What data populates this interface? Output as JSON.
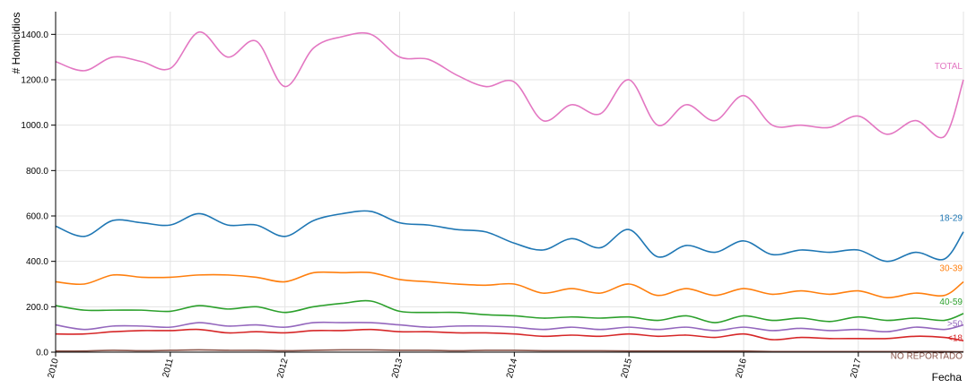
{
  "chart_data": {
    "type": "line",
    "title": "",
    "xlabel": "Fecha",
    "ylabel": "# Homicidios",
    "ylim": [
      0,
      1500
    ],
    "xlim": [
      "2010-01",
      "2017-12"
    ],
    "y_ticks": [
      "0.0",
      "200.0",
      "400.0",
      "600.0",
      "800.0",
      "1000.0",
      "1200.0",
      "1400.0"
    ],
    "x_ticks": [
      "2010",
      "2011",
      "2012",
      "2013",
      "2014",
      "2015",
      "2016",
      "2017"
    ],
    "grid": true,
    "x": [
      "2010-01",
      "2010-04",
      "2010-07",
      "2010-10",
      "2011-01",
      "2011-04",
      "2011-07",
      "2011-10",
      "2012-01",
      "2012-04",
      "2012-07",
      "2012-10",
      "2013-01",
      "2013-04",
      "2013-07",
      "2013-10",
      "2014-01",
      "2014-04",
      "2014-07",
      "2014-10",
      "2015-01",
      "2015-04",
      "2015-07",
      "2015-10",
      "2016-01",
      "2016-04",
      "2016-07",
      "2016-10",
      "2017-01",
      "2017-04",
      "2017-07",
      "2017-10",
      "2017-12"
    ],
    "series": [
      {
        "name": "TOTAL",
        "color": "#e377c2",
        "values": [
          1280,
          1240,
          1300,
          1280,
          1250,
          1410,
          1300,
          1370,
          1170,
          1340,
          1390,
          1400,
          1300,
          1290,
          1220,
          1170,
          1190,
          1020,
          1090,
          1050,
          1200,
          1000,
          1090,
          1020,
          1130,
          1000,
          1000,
          990,
          1040,
          960,
          1020,
          950,
          1200
        ]
      },
      {
        "name": "18-29",
        "color": "#1f77b4",
        "values": [
          555,
          510,
          580,
          570,
          560,
          610,
          560,
          560,
          510,
          580,
          610,
          620,
          570,
          560,
          540,
          530,
          480,
          450,
          500,
          460,
          540,
          420,
          470,
          440,
          490,
          430,
          450,
          440,
          450,
          400,
          440,
          410,
          530
        ]
      },
      {
        "name": "30-39",
        "color": "#ff7f0e",
        "values": [
          310,
          300,
          340,
          330,
          330,
          340,
          340,
          330,
          310,
          350,
          350,
          350,
          320,
          310,
          300,
          295,
          300,
          260,
          280,
          260,
          300,
          250,
          280,
          250,
          280,
          255,
          270,
          255,
          270,
          240,
          260,
          250,
          310
        ]
      },
      {
        "name": "40-59",
        "color": "#2ca02c",
        "values": [
          205,
          185,
          185,
          185,
          180,
          205,
          190,
          200,
          175,
          200,
          215,
          225,
          180,
          175,
          175,
          165,
          160,
          150,
          155,
          150,
          155,
          140,
          160,
          130,
          160,
          140,
          150,
          135,
          155,
          140,
          150,
          140,
          170
        ]
      },
      {
        "name": ">50",
        "color": "#9467bd",
        "values": [
          120,
          100,
          115,
          115,
          110,
          130,
          115,
          120,
          110,
          130,
          130,
          130,
          120,
          110,
          115,
          115,
          110,
          100,
          110,
          100,
          110,
          100,
          110,
          95,
          110,
          95,
          105,
          95,
          100,
          90,
          110,
          100,
          120
        ]
      },
      {
        "name": "<18",
        "color": "#d62728",
        "values": [
          80,
          80,
          90,
          95,
          95,
          100,
          85,
          90,
          85,
          95,
          95,
          100,
          90,
          90,
          85,
          85,
          80,
          70,
          75,
          70,
          80,
          70,
          75,
          65,
          80,
          55,
          65,
          60,
          60,
          60,
          70,
          65,
          50
        ]
      },
      {
        "name": "NO REPORTADO",
        "color": "#8c564b",
        "values": [
          5,
          5,
          8,
          6,
          8,
          10,
          8,
          8,
          6,
          8,
          10,
          10,
          8,
          8,
          6,
          8,
          8,
          6,
          6,
          6,
          5,
          5,
          5,
          5,
          5,
          3,
          3,
          3,
          3,
          3,
          3,
          3,
          2
        ]
      }
    ]
  }
}
